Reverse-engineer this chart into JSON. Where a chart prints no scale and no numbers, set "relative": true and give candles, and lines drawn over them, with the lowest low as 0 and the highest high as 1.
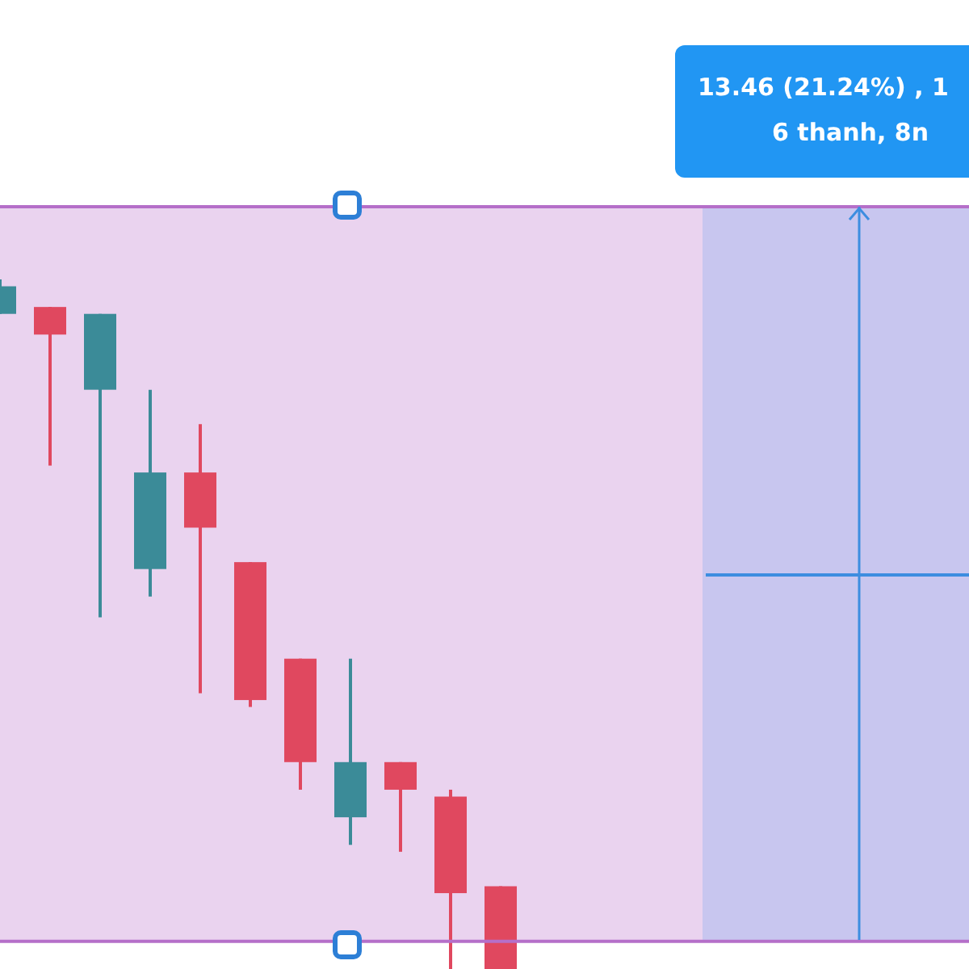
{
  "chart_data": {
    "type": "candlestick",
    "relative": true,
    "categories": [
      null,
      null,
      null,
      null,
      null,
      null,
      null,
      null,
      null,
      null,
      null,
      null,
      null,
      null,
      null,
      null,
      null,
      null,
      null,
      null
    ],
    "ohlc": [
      [
        0.95,
        1,
        0.95,
        0.99
      ],
      [
        0.96,
        0.96,
        0.73,
        0.92
      ],
      [
        0.84,
        0.95,
        0.51,
        0.95
      ],
      [
        0.58,
        0.84,
        0.54,
        0.72
      ],
      [
        0.72,
        0.79,
        0.4,
        0.64
      ],
      [
        0.59,
        0.59,
        0.38,
        0.39
      ],
      [
        0.45,
        0.45,
        0.26,
        0.3
      ],
      [
        0.22,
        0.45,
        0.18,
        0.3
      ],
      [
        0.3,
        0.3,
        0.17,
        0.26
      ],
      [
        0.25,
        0.26,
        0,
        0.11
      ],
      [
        0.12,
        0.12,
        0,
        0
      ],
      null,
      null,
      null,
      null,
      null,
      null,
      null,
      null,
      null
    ],
    "colors": [
      "#3b8b98",
      "#e0485f",
      "#3b8b98",
      "#3b8b98",
      "#e0485f",
      "#e0485f",
      "#e0485f",
      "#3b8b98",
      "#e0485f",
      "#e0485f",
      "#e0485f",
      null,
      null,
      null,
      null,
      null,
      null,
      null,
      null,
      null
    ],
    "ref_lines": [
      {
        "axis": "y",
        "value": 0.04,
        "color": "#b56fc9"
      }
    ],
    "annotations": [
      "13.46 (21.24%) , 1",
      "6 thanh, 8n"
    ]
  }
}
